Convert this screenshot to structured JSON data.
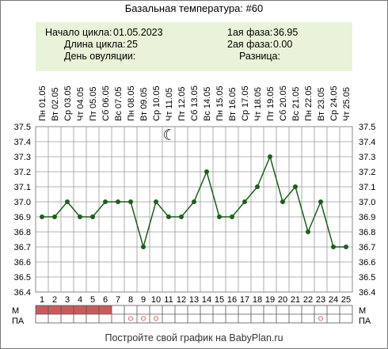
{
  "title": "Базальная температура: #60",
  "info": {
    "cycle_start_label": "Начало цикла:",
    "cycle_start_value": "01.05.2023",
    "cycle_length_label": "Длина цикла:",
    "cycle_length_value": "25",
    "ovulation_label": "День овуляции:",
    "ovulation_value": "",
    "phase1_label": "1ая фаза:",
    "phase1_value": "36.95",
    "phase2_label": "2ая фаза:",
    "phase2_value": "0.00",
    "difference_label": "Разница:",
    "difference_value": ""
  },
  "footer": "Постройте свой график на BabyPlan.ru",
  "chart_data": {
    "type": "line",
    "dates": [
      "Пн 01.05",
      "Вт 02.05",
      "Ср 03.05",
      "Чт 04.05",
      "Пт 05.05",
      "Сб 06.05",
      "Вс 07.05",
      "Пн 08.05",
      "Вт 09.05",
      "Ср 10.05",
      "Чт 11.05",
      "Пт 12.05",
      "Сб 13.05",
      "Вс 14.05",
      "Пн 15.05",
      "Вт 16.05",
      "Ср 17.05",
      "Чт 18.05",
      "Пт 19.05",
      "Сб 20.05",
      "Вс 21.05",
      "Пн 22.05",
      "Вт 23.05",
      "Ср 24.05",
      "Чт 25.05"
    ],
    "days": [
      1,
      2,
      3,
      4,
      5,
      6,
      7,
      8,
      9,
      10,
      11,
      12,
      13,
      14,
      15,
      16,
      17,
      18,
      19,
      20,
      21,
      22,
      23,
      24,
      25
    ],
    "temperature": [
      36.9,
      36.9,
      37.0,
      36.9,
      36.9,
      37.0,
      37.0,
      37.0,
      36.7,
      37.0,
      36.9,
      36.9,
      37.0,
      37.2,
      36.9,
      36.9,
      37.0,
      37.1,
      37.3,
      37.0,
      37.1,
      36.8,
      37.0,
      36.7,
      36.7
    ],
    "y_ticks": [
      "37.5",
      "37.4",
      "37.3",
      "37.2",
      "37.1",
      "37.0",
      "36.9",
      "36.8",
      "36.7",
      "36.6",
      "36.5",
      "36.4"
    ],
    "ylim": [
      36.4,
      37.5
    ],
    "grid": true,
    "line_color": "#1d5e1d",
    "menstruation_label": "М",
    "menstruation_days": [
      1,
      2,
      3,
      4,
      5,
      6
    ],
    "menstruation_color": "#cc5a5a",
    "intercourse_label": "ПА",
    "intercourse_days": [
      8,
      9,
      10,
      23
    ],
    "intercourse_color": "#e06060",
    "moon_day": 11,
    "moon_symbol": "☾"
  }
}
